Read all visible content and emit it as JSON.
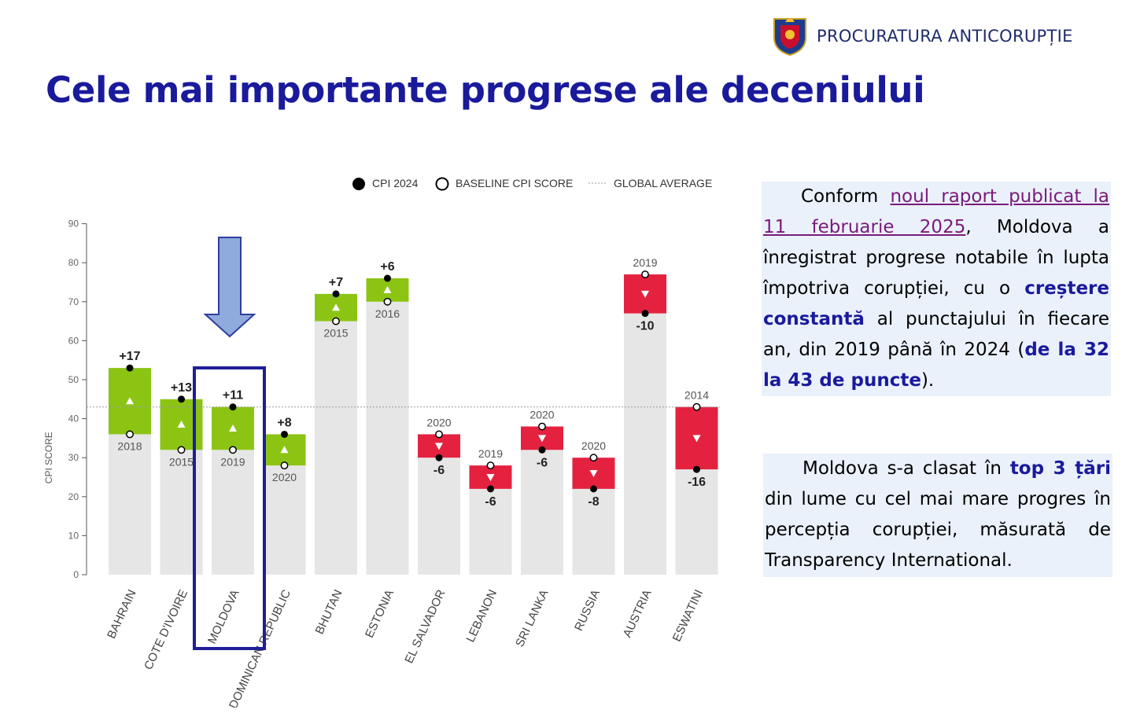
{
  "header": {
    "brand": "PROCURATURA ANTICORUPȚIE",
    "title": "Cele mai importante progrese ale deceniului"
  },
  "colors": {
    "title": "#1a1a9c",
    "increase": "#8cc414",
    "decrease": "#e4223f",
    "bar_base": "#e6e6e6",
    "highlight_box": "#1e1e9a",
    "arrow": "#8faadc",
    "text_panel": "#eaf1fb"
  },
  "chart_data": {
    "type": "bar",
    "subtype": "change-bar",
    "ylabel": "CPI SCORE",
    "ylim": [
      0,
      90
    ],
    "yticks": [
      0,
      10,
      20,
      30,
      40,
      50,
      60,
      70,
      80,
      90
    ],
    "global_average": 43,
    "legend": [
      "CPI 2024",
      "BASELINE CPI SCORE",
      "GLOBAL AVERAGE"
    ],
    "legend_position": "top-right",
    "highlighted": "MOLDOVA",
    "categories": [
      "BAHRAIN",
      "COTE D'IVOIRE",
      "MOLDOVA",
      "DOMINICAN REPUBLIC",
      "BHUTAN",
      "ESTONIA",
      "EL SALVADOR",
      "LEBANON",
      "SRI LANKA",
      "RUSSIA",
      "AUSTRIA",
      "ESWATINI"
    ],
    "series": [
      {
        "name": "CPI 2024",
        "values": [
          53,
          45,
          43,
          36,
          72,
          76,
          30,
          22,
          32,
          22,
          67,
          27
        ]
      },
      {
        "name": "BASELINE CPI SCORE",
        "values": [
          36,
          32,
          32,
          28,
          65,
          70,
          36,
          28,
          38,
          30,
          77,
          43
        ]
      }
    ],
    "baseline_years": [
      "2018",
      "2015",
      "2019",
      "2020",
      "2015",
      "2016",
      "2020",
      "2019",
      "2020",
      "2020",
      "2019",
      "2014"
    ],
    "change_labels": [
      "+17",
      "+13",
      "+11",
      "+8",
      "+7",
      "+6",
      "-6",
      "-6",
      "-6",
      "-8",
      "-10",
      "-16"
    ]
  },
  "panel1": {
    "intro": "Conform ",
    "link": "noul raport publicat la 11 februarie 2025",
    "t1": ", Moldova a înregistrat progrese notabile în lupta împotriva corupției, cu o ",
    "b1": "creștere constantă",
    "t2": " al punctajului în fiecare an, din 2019 până în 2024 (",
    "b2": "de la 32 la 43 de puncte",
    "t3": ")."
  },
  "panel2": {
    "t1": "Moldova s-a clasat în ",
    "b1": "top 3 țări",
    "t2": " din lume cu cel mai mare progres în percepția corupției, măsurată de Transparency International."
  }
}
